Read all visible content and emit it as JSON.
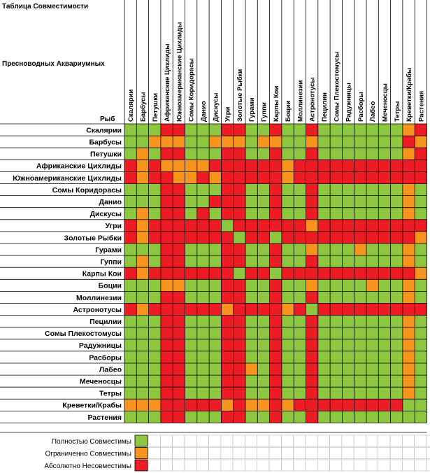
{
  "title_lines": [
    "Таблица Совместимости",
    "Пресноводных Аквариумных",
    "Рыб"
  ],
  "colors": {
    "compatible": "#8dc63f",
    "limited": "#f7941d",
    "incompatible": "#ed1c24"
  },
  "chart_data": {
    "type": "heatmap",
    "species": [
      "Скалярии",
      "Барбусы",
      "Петушки",
      "Африканские Цихлиды",
      "Южноамериканские Цихлиды",
      "Сомы Коридорасы",
      "Данио",
      "Дискусы",
      "Угри",
      "Золотые Рыбки",
      "Гурами",
      "Гуппи",
      "Карпы Кои",
      "Боции",
      "Моллинезии",
      "Астронотусы",
      "Пецилии",
      "Сомы Плекостомусы",
      "Радужницы",
      "Расборы",
      "Лабео",
      "Меченосцы",
      "Тетры",
      "Креветки/Крабы",
      "Растения"
    ],
    "matrix": [
      "GGGRRGGGRRGGRGGRGGGGGGGOR",
      "GGOOOGGOOOGOOGGOGGGGGGGRO",
      "GOGRRGGGRRGGRGGRGGGGGGGOR",
      "ROROOOORRRRRRORRRRRRRRRRR",
      "RORROORORRRRRORRRRRRRRRRR",
      "GGGRRGGGRRGGRGGRGGGGGGGOG",
      "GGGRRGGRRRGGRGGRGGGGGGGOG",
      "GOGRRGRGRRGGRGGRGGGGGGGOG",
      "RORRRRRRGRRRRRRORRRRRRRRR",
      "RORRRRRRRGRRGRRRRRRRRRRRO",
      "GGGRRGGGRRGGRGGOGGGOGGGOG",
      "GOGRRGGGRRGGRGGRGGGGGGGOG",
      "RORRRRRRRGRRGRRRRRRRRRRRO",
      "GGGOOGGGRRGGRGGOGGGGOGGOG",
      "GGGRRGGGRRGGRGGRGGGGGGGOG",
      "RORRRRRRORRRRORGRRRRRRRRR",
      "GGGRRGGGRRGGRGGRGGGGGGGOG",
      "GGGRRGGGRRGGRGGRGGGGGGGOG",
      "GGGRRGGGRRGGRGGRGGGGGGGOG",
      "GGGRRGGGRRGGRGGRGGGGGGGOG",
      "GGGRRGGGRROGRGGRGGGGGGGOG",
      "GGGRRGGGRRGGRGGRGGGGGGGOG",
      "GGGRRGGGRRGGRGGRGGGGGGGOG",
      "OOORRRRROROORORRRRRRRRRGG",
      "GGGRRGGGRRGGRGGRGGGGGGGGG"
    ],
    "codes": {
      "G": "compatible",
      "O": "limited",
      "R": "incompatible"
    }
  },
  "legend": [
    {
      "key": "compatible",
      "label": "Полностью Совместимы"
    },
    {
      "key": "limited",
      "label": "Ограниченно Совместимы"
    },
    {
      "key": "incompatible",
      "label": "Абсолютно Несовместимы"
    }
  ]
}
